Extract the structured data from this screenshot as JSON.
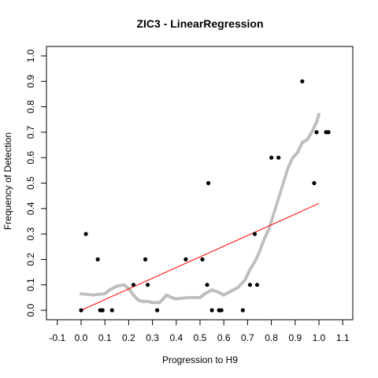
{
  "chart_data": {
    "type": "scatter",
    "title": "ZIC3 - LinearRegression",
    "xlabel": "Progression to H9",
    "ylabel": "Frequency of Detection",
    "xlim": [
      -0.1,
      1.1
    ],
    "ylim": [
      0.0,
      1.0
    ],
    "x_ticks": [
      "-0.1",
      "0.0",
      "0.1",
      "0.2",
      "0.3",
      "0.4",
      "0.5",
      "0.6",
      "0.7",
      "0.8",
      "0.9",
      "1.0",
      "1.1"
    ],
    "y_ticks": [
      "0.0",
      "0.1",
      "0.2",
      "0.3",
      "0.4",
      "0.5",
      "0.6",
      "0.7",
      "0.8",
      "0.9",
      "1.0"
    ],
    "grid": false,
    "legend": "none",
    "colors": {
      "observed": "#000000",
      "smoothed": "#bebebe",
      "regression": "#ff0000"
    },
    "observed_points": [
      {
        "x": 0.0,
        "y": 0.0
      },
      {
        "x": 0.02,
        "y": 0.3
      },
      {
        "x": 0.07,
        "y": 0.2
      },
      {
        "x": 0.08,
        "y": 0.0
      },
      {
        "x": 0.09,
        "y": 0.0
      },
      {
        "x": 0.13,
        "y": 0.0
      },
      {
        "x": 0.22,
        "y": 0.1
      },
      {
        "x": 0.27,
        "y": 0.2
      },
      {
        "x": 0.28,
        "y": 0.1
      },
      {
        "x": 0.32,
        "y": 0.0
      },
      {
        "x": 0.44,
        "y": 0.2
      },
      {
        "x": 0.51,
        "y": 0.2
      },
      {
        "x": 0.53,
        "y": 0.1
      },
      {
        "x": 0.535,
        "y": 0.5
      },
      {
        "x": 0.55,
        "y": 0.0
      },
      {
        "x": 0.58,
        "y": 0.0
      },
      {
        "x": 0.59,
        "y": 0.0
      },
      {
        "x": 0.68,
        "y": 0.0
      },
      {
        "x": 0.71,
        "y": 0.1
      },
      {
        "x": 0.73,
        "y": 0.3
      },
      {
        "x": 0.74,
        "y": 0.1
      },
      {
        "x": 0.8,
        "y": 0.6
      },
      {
        "x": 0.83,
        "y": 0.6
      },
      {
        "x": 0.93,
        "y": 0.9
      },
      {
        "x": 0.98,
        "y": 0.5
      },
      {
        "x": 0.99,
        "y": 0.7
      },
      {
        "x": 1.03,
        "y": 0.7
      },
      {
        "x": 1.04,
        "y": 0.7
      }
    ],
    "smoothed_curve": {
      "x": [
        0.0,
        0.05,
        0.1,
        0.12,
        0.15,
        0.18,
        0.2,
        0.22,
        0.24,
        0.26,
        0.28,
        0.3,
        0.33,
        0.36,
        0.38,
        0.4,
        0.45,
        0.5,
        0.52,
        0.55,
        0.58,
        0.6,
        0.63,
        0.66,
        0.69,
        0.71,
        0.73,
        0.75,
        0.77,
        0.79,
        0.81,
        0.83,
        0.85,
        0.87,
        0.89,
        0.91,
        0.93,
        0.95,
        0.97,
        0.99,
        1.0
      ],
      "y": [
        0.065,
        0.06,
        0.065,
        0.08,
        0.095,
        0.1,
        0.085,
        0.06,
        0.04,
        0.035,
        0.035,
        0.03,
        0.03,
        0.06,
        0.05,
        0.045,
        0.05,
        0.05,
        0.065,
        0.08,
        0.07,
        0.06,
        0.075,
        0.09,
        0.12,
        0.16,
        0.19,
        0.23,
        0.28,
        0.32,
        0.38,
        0.44,
        0.5,
        0.56,
        0.6,
        0.62,
        0.66,
        0.67,
        0.7,
        0.74,
        0.77
      ]
    },
    "regression_line": {
      "x": [
        0.0,
        1.0
      ],
      "y": [
        0.0,
        0.42
      ]
    }
  }
}
